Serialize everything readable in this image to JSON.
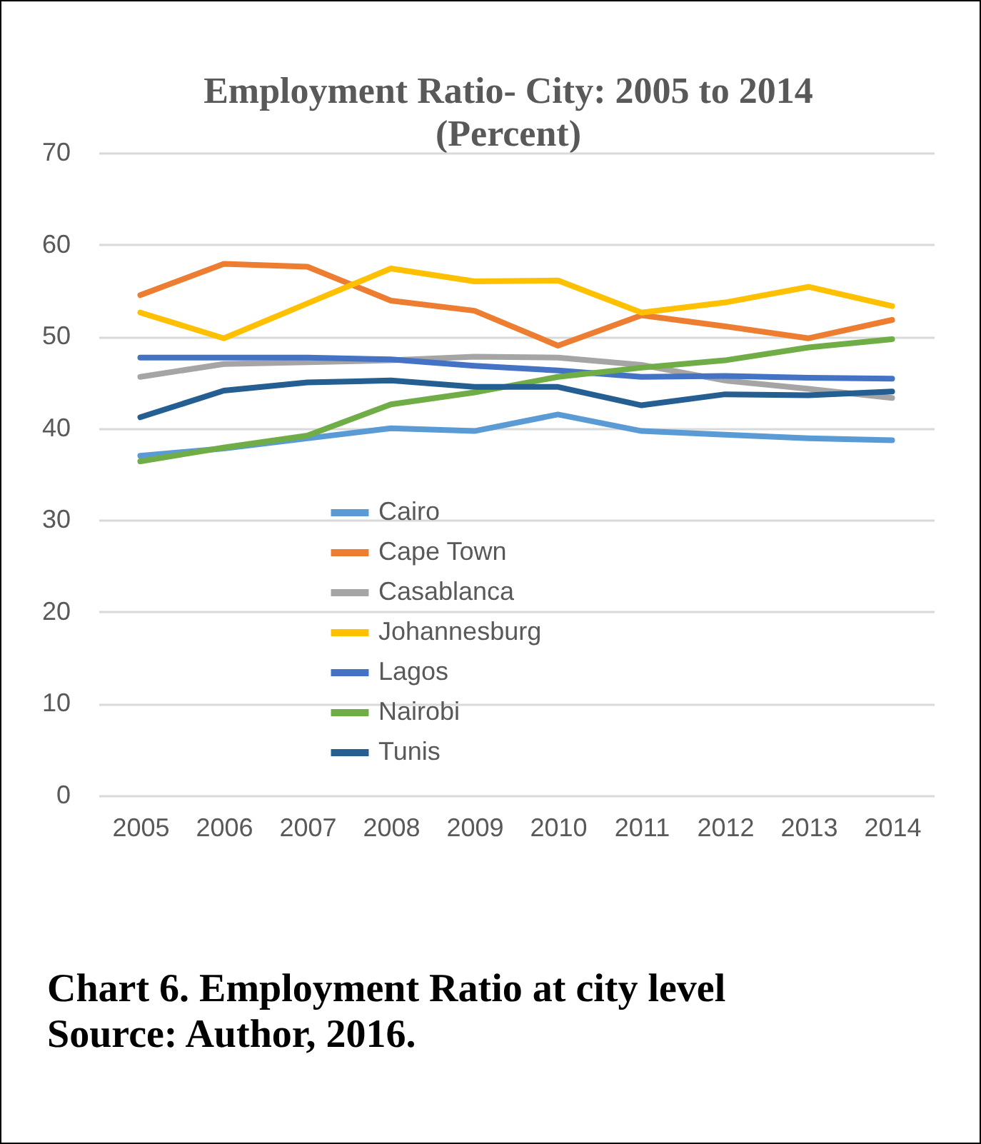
{
  "chart_data": {
    "type": "line",
    "title": "Employment Ratio- City: 2005 to 2014 (Percent)",
    "categories": [
      "2005",
      "2006",
      "2007",
      "2008",
      "2009",
      "2010",
      "2011",
      "2012",
      "2013",
      "2014"
    ],
    "series": [
      {
        "name": "Cairo",
        "color": "#5b9bd5",
        "values": [
          37,
          37.8,
          38.9,
          40,
          39.7,
          41.5,
          39.7,
          39.3,
          38.9,
          38.7
        ]
      },
      {
        "name": "Cape Town",
        "color": "#ed7d31",
        "values": [
          54.5,
          57.9,
          57.6,
          53.9,
          52.8,
          49,
          52.3,
          51.1,
          49.8,
          51.8
        ]
      },
      {
        "name": "Casablanca",
        "color": "#a5a5a5",
        "values": [
          45.6,
          47,
          47.2,
          47.4,
          47.8,
          47.7,
          46.9,
          45.2,
          44.3,
          43.3
        ]
      },
      {
        "name": "Johannesburg",
        "color": "#ffc000",
        "values": [
          52.6,
          49.8,
          53.6,
          57.4,
          56,
          56.1,
          52.6,
          53.7,
          55.4,
          53.3
        ]
      },
      {
        "name": "Lagos",
        "color": "#4472c4",
        "values": [
          47.7,
          47.7,
          47.7,
          47.5,
          46.8,
          46.3,
          45.6,
          45.7,
          45.5,
          45.4
        ]
      },
      {
        "name": "Nairobi",
        "color": "#70ad47",
        "values": [
          36.4,
          37.9,
          39.2,
          42.6,
          43.9,
          45.6,
          46.6,
          47.4,
          48.8,
          49.7
        ]
      },
      {
        "name": "Tunis",
        "color": "#255e91",
        "values": [
          41.2,
          44.1,
          45,
          45.2,
          44.5,
          44.5,
          42.5,
          43.7,
          43.6,
          44
        ]
      }
    ],
    "ylim": [
      0,
      70
    ],
    "yticks": [
      0,
      10,
      20,
      30,
      40,
      50,
      60,
      70
    ],
    "grid": true,
    "legend": "bottom left",
    "annotations": [
      "Chart 6. Employment Ratio at city level",
      "Source: Author, 2016."
    ]
  }
}
